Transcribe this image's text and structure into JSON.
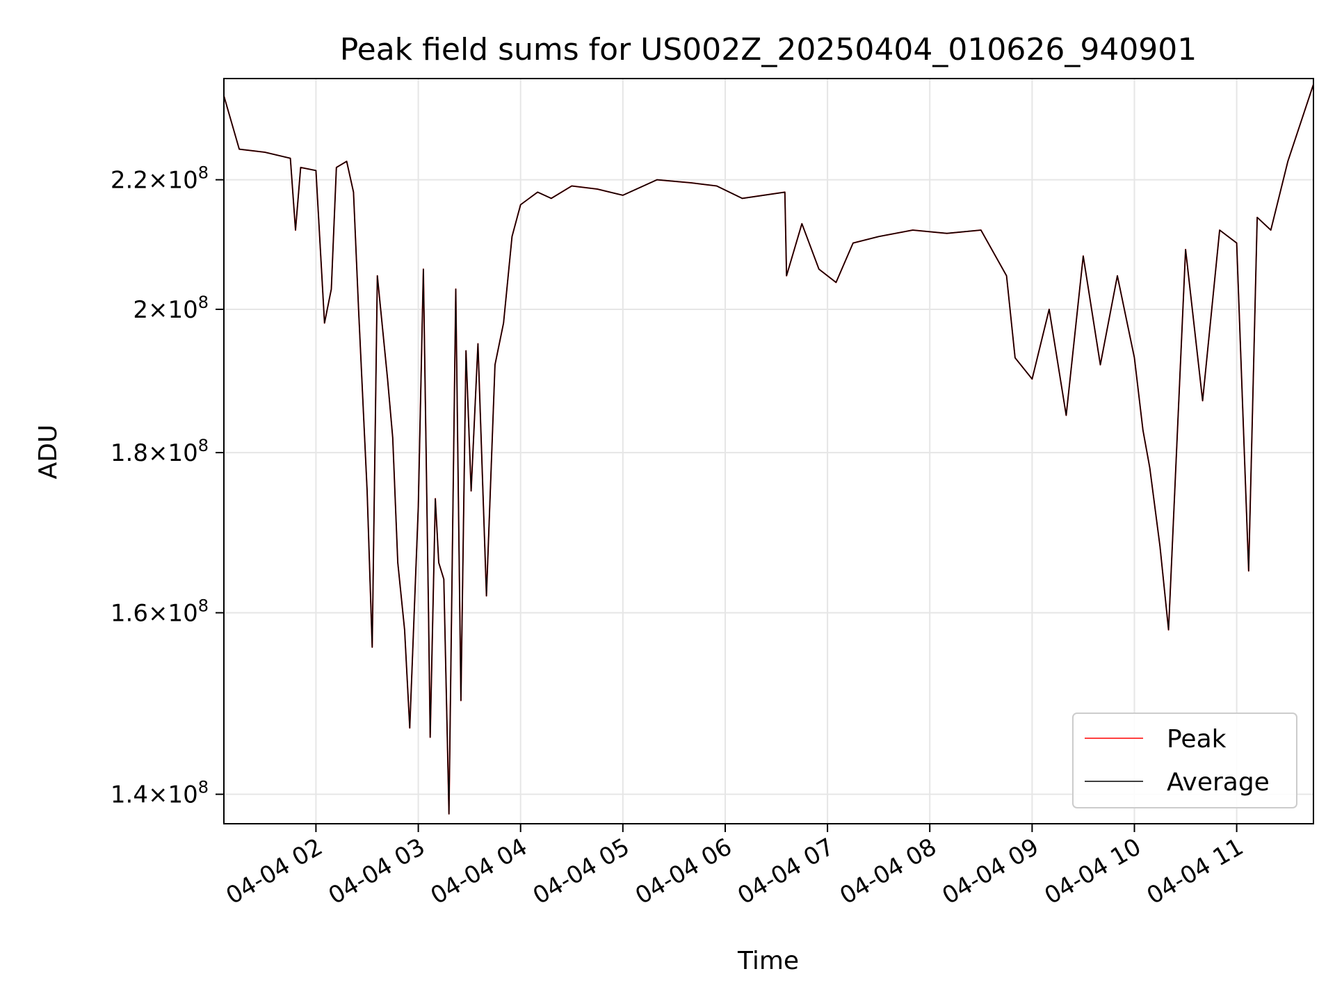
{
  "chart_data": {
    "type": "line",
    "title": "Peak field sums for US002Z_20250404_010626_940901",
    "xlabel": "Time",
    "ylabel": "ADU",
    "y_scale": "log",
    "x_range": [
      "2025-04-04T01:06",
      "2025-04-04T11:45"
    ],
    "ylim": [
      137000000,
      237000000
    ],
    "grid": true,
    "legend_position": "lower right",
    "x_ticks": [
      {
        "value": "2025-04-04T02:00",
        "label": "04-04 02"
      },
      {
        "value": "2025-04-04T03:00",
        "label": "04-04 03"
      },
      {
        "value": "2025-04-04T04:00",
        "label": "04-04 04"
      },
      {
        "value": "2025-04-04T05:00",
        "label": "04-04 05"
      },
      {
        "value": "2025-04-04T06:00",
        "label": "04-04 06"
      },
      {
        "value": "2025-04-04T07:00",
        "label": "04-04 07"
      },
      {
        "value": "2025-04-04T08:00",
        "label": "04-04 08"
      },
      {
        "value": "2025-04-04T09:00",
        "label": "04-04 09"
      },
      {
        "value": "2025-04-04T10:00",
        "label": "04-04 10"
      },
      {
        "value": "2025-04-04T11:00",
        "label": "04-04 11"
      }
    ],
    "y_ticks": [
      {
        "value": 140000000,
        "mantissa": "1.4",
        "base": "10",
        "exp": "8"
      },
      {
        "value": 160000000,
        "mantissa": "1.6",
        "base": "10",
        "exp": "8"
      },
      {
        "value": 180000000,
        "mantissa": "1.8",
        "base": "10",
        "exp": "8"
      },
      {
        "value": 200000000,
        "mantissa": "2",
        "base": "10",
        "exp": "8"
      },
      {
        "value": 220000000,
        "mantissa": "2.2",
        "base": "10",
        "exp": "8"
      }
    ],
    "series": [
      {
        "name": "Peak",
        "color": "#ff0000",
        "x": [
          "2025-04-04T01:06",
          "2025-04-04T01:15",
          "2025-04-04T01:30",
          "2025-04-04T01:45",
          "2025-04-04T01:48",
          "2025-04-04T01:51",
          "2025-04-04T02:00",
          "2025-04-04T02:05",
          "2025-04-04T02:09",
          "2025-04-04T02:12",
          "2025-04-04T02:18",
          "2025-04-04T02:22",
          "2025-04-04T02:25",
          "2025-04-04T02:30",
          "2025-04-04T02:33",
          "2025-04-04T02:36",
          "2025-04-04T02:42",
          "2025-04-04T02:45",
          "2025-04-04T02:48",
          "2025-04-04T02:52",
          "2025-04-04T02:55",
          "2025-04-04T03:00",
          "2025-04-04T03:03",
          "2025-04-04T03:06",
          "2025-04-04T03:07",
          "2025-04-04T03:10",
          "2025-04-04T03:12",
          "2025-04-04T03:15",
          "2025-04-04T03:18",
          "2025-04-04T03:22",
          "2025-04-04T03:25",
          "2025-04-04T03:28",
          "2025-04-04T03:31",
          "2025-04-04T03:35",
          "2025-04-04T03:40",
          "2025-04-04T03:45",
          "2025-04-04T03:50",
          "2025-04-04T03:55",
          "2025-04-04T04:00",
          "2025-04-04T04:10",
          "2025-04-04T04:18",
          "2025-04-04T04:30",
          "2025-04-04T04:45",
          "2025-04-04T05:00",
          "2025-04-04T05:20",
          "2025-04-04T05:40",
          "2025-04-04T05:55",
          "2025-04-04T06:10",
          "2025-04-04T06:35",
          "2025-04-04T06:36",
          "2025-04-04T06:45",
          "2025-04-04T06:55",
          "2025-04-04T07:05",
          "2025-04-04T07:15",
          "2025-04-04T07:30",
          "2025-04-04T07:50",
          "2025-04-04T08:10",
          "2025-04-04T08:30",
          "2025-04-04T08:45",
          "2025-04-04T08:50",
          "2025-04-04T09:00",
          "2025-04-04T09:10",
          "2025-04-04T09:20",
          "2025-04-04T09:30",
          "2025-04-04T09:40",
          "2025-04-04T09:50",
          "2025-04-04T10:00",
          "2025-04-04T10:05",
          "2025-04-04T10:09",
          "2025-04-04T10:15",
          "2025-04-04T10:20",
          "2025-04-04T10:30",
          "2025-04-04T10:40",
          "2025-04-04T10:50",
          "2025-04-04T11:00",
          "2025-04-04T11:07",
          "2025-04-04T11:12",
          "2025-04-04T11:20",
          "2025-04-04T11:30",
          "2025-04-04T11:45"
        ],
        "values": [
          234000000,
          225000000,
          224500000,
          223500000,
          212000000,
          222000000,
          221500000,
          198000000,
          203000000,
          222000000,
          223000000,
          218000000,
          200000000,
          175000000,
          156000000,
          205000000,
          190000000,
          182000000,
          166000000,
          158000000,
          147000000,
          173000000,
          206000000,
          160000000,
          146000000,
          174000000,
          166000000,
          164000000,
          138000000,
          203000000,
          150000000,
          194000000,
          175000000,
          195000000,
          162000000,
          192000000,
          198000000,
          211000000,
          216000000,
          218000000,
          217000000,
          219000000,
          218500000,
          217500000,
          220000000,
          219500000,
          219000000,
          217000000,
          218000000,
          205000000,
          213000000,
          206000000,
          204000000,
          210000000,
          211000000,
          212000000,
          211500000,
          212000000,
          205000000,
          193000000,
          190000000,
          200000000,
          185000000,
          208000000,
          192000000,
          205000000,
          193000000,
          183000000,
          178000000,
          168000000,
          158000000,
          209000000,
          187000000,
          212000000,
          210000000,
          165000000,
          214000000,
          212000000,
          223000000,
          236000000
        ]
      },
      {
        "name": "Average",
        "color": "#000000",
        "x": [
          "2025-04-04T01:06",
          "2025-04-04T01:15",
          "2025-04-04T01:30",
          "2025-04-04T01:45",
          "2025-04-04T01:48",
          "2025-04-04T01:51",
          "2025-04-04T02:00",
          "2025-04-04T02:05",
          "2025-04-04T02:09",
          "2025-04-04T02:12",
          "2025-04-04T02:18",
          "2025-04-04T02:22",
          "2025-04-04T02:25",
          "2025-04-04T02:30",
          "2025-04-04T02:33",
          "2025-04-04T02:36",
          "2025-04-04T02:42",
          "2025-04-04T02:45",
          "2025-04-04T02:48",
          "2025-04-04T02:52",
          "2025-04-04T02:55",
          "2025-04-04T03:00",
          "2025-04-04T03:03",
          "2025-04-04T03:06",
          "2025-04-04T03:07",
          "2025-04-04T03:10",
          "2025-04-04T03:12",
          "2025-04-04T03:15",
          "2025-04-04T03:18",
          "2025-04-04T03:22",
          "2025-04-04T03:25",
          "2025-04-04T03:28",
          "2025-04-04T03:31",
          "2025-04-04T03:35",
          "2025-04-04T03:40",
          "2025-04-04T03:45",
          "2025-04-04T03:50",
          "2025-04-04T03:55",
          "2025-04-04T04:00",
          "2025-04-04T04:10",
          "2025-04-04T04:18",
          "2025-04-04T04:30",
          "2025-04-04T04:45",
          "2025-04-04T05:00",
          "2025-04-04T05:20",
          "2025-04-04T05:40",
          "2025-04-04T05:55",
          "2025-04-04T06:10",
          "2025-04-04T06:35",
          "2025-04-04T06:36",
          "2025-04-04T06:45",
          "2025-04-04T06:55",
          "2025-04-04T07:05",
          "2025-04-04T07:15",
          "2025-04-04T07:30",
          "2025-04-04T07:50",
          "2025-04-04T08:10",
          "2025-04-04T08:30",
          "2025-04-04T08:45",
          "2025-04-04T08:50",
          "2025-04-04T09:00",
          "2025-04-04T09:10",
          "2025-04-04T09:20",
          "2025-04-04T09:30",
          "2025-04-04T09:40",
          "2025-04-04T09:50",
          "2025-04-04T10:00",
          "2025-04-04T10:05",
          "2025-04-04T10:09",
          "2025-04-04T10:15",
          "2025-04-04T10:20",
          "2025-04-04T10:30",
          "2025-04-04T10:40",
          "2025-04-04T10:50",
          "2025-04-04T11:00",
          "2025-04-04T11:07",
          "2025-04-04T11:12",
          "2025-04-04T11:20",
          "2025-04-04T11:30",
          "2025-04-04T11:45"
        ],
        "values": [
          234000000,
          225000000,
          224500000,
          223500000,
          212000000,
          222000000,
          221500000,
          198000000,
          203000000,
          222000000,
          223000000,
          218000000,
          200000000,
          175000000,
          156000000,
          205000000,
          190000000,
          182000000,
          166000000,
          158000000,
          147000000,
          173000000,
          206000000,
          160000000,
          146000000,
          174000000,
          166000000,
          164000000,
          138000000,
          203000000,
          150000000,
          194000000,
          175000000,
          195000000,
          162000000,
          192000000,
          198000000,
          211000000,
          216000000,
          218000000,
          217000000,
          219000000,
          218500000,
          217500000,
          220000000,
          219500000,
          219000000,
          217000000,
          218000000,
          205000000,
          213000000,
          206000000,
          204000000,
          210000000,
          211000000,
          212000000,
          211500000,
          212000000,
          205000000,
          193000000,
          190000000,
          200000000,
          185000000,
          208000000,
          192000000,
          205000000,
          193000000,
          183000000,
          178000000,
          168000000,
          158000000,
          209000000,
          187000000,
          212000000,
          210000000,
          165000000,
          214000000,
          212000000,
          223000000,
          236000000
        ]
      }
    ]
  }
}
